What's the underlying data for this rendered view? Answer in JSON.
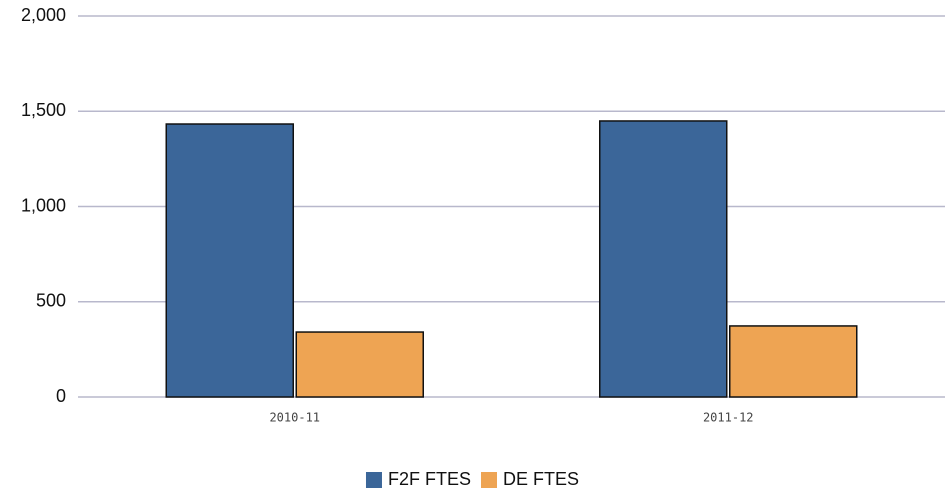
{
  "chart_data": {
    "type": "bar",
    "categories": [
      "2010-11",
      "2011-12"
    ],
    "series": [
      {
        "name": "F2F FTES",
        "color": "#3b6699",
        "values": [
          1433,
          1449
        ]
      },
      {
        "name": "DE FTES",
        "color": "#eea453",
        "values": [
          341,
          373
        ]
      }
    ],
    "ylim": [
      0,
      2000
    ],
    "yticks": [
      0,
      500,
      {
        "value": 1000,
        "label": "1,000"
      },
      {
        "value": 1500,
        "label": "1,500"
      },
      {
        "value": 2000,
        "label": "2,000"
      }
    ],
    "grid": true,
    "legend": "bottom"
  }
}
